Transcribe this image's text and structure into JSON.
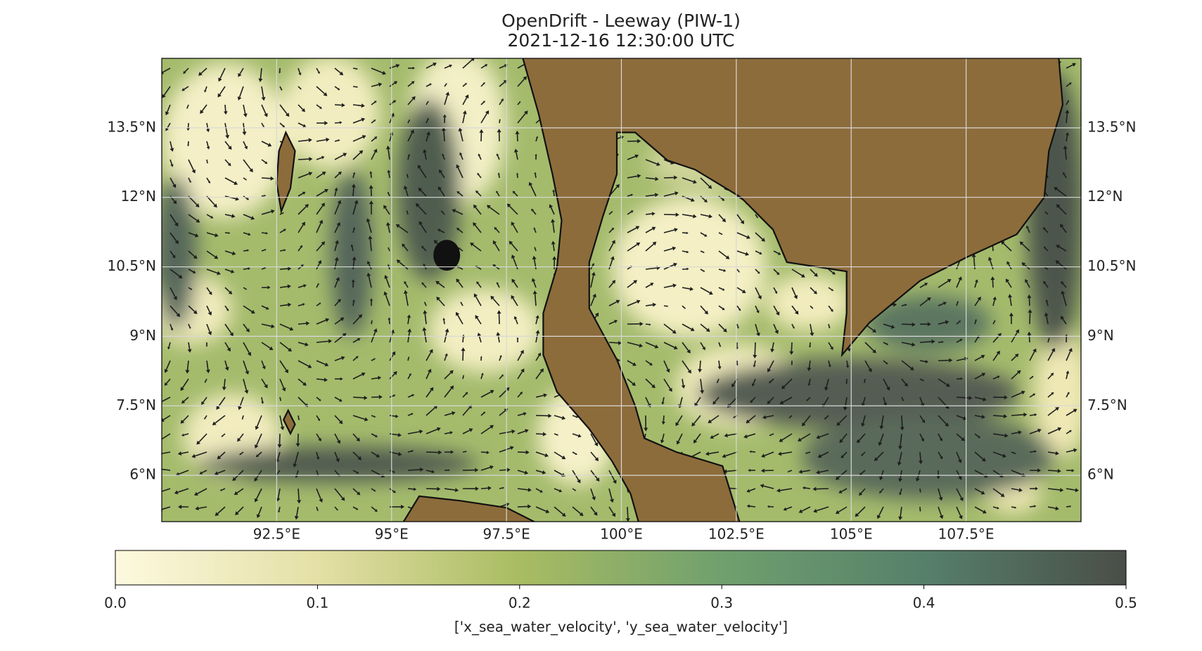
{
  "title": "OpenDrift - Leeway (PIW-1)",
  "subtitle": "2021-12-16 12:30:00 UTC",
  "map": {
    "xlim": [
      90,
      110
    ],
    "ylim": [
      5,
      15
    ],
    "xticks": [
      {
        "value": 92.5,
        "label": "92.5°E"
      },
      {
        "value": 95,
        "label": "95°E"
      },
      {
        "value": 97.5,
        "label": "97.5°E"
      },
      {
        "value": 100,
        "label": "100°E"
      },
      {
        "value": 102.5,
        "label": "102.5°E"
      },
      {
        "value": 105,
        "label": "105°E"
      },
      {
        "value": 107.5,
        "label": "107.5°E"
      }
    ],
    "yticks": [
      {
        "value": 6,
        "label": "6°N"
      },
      {
        "value": 7.5,
        "label": "7.5°N"
      },
      {
        "value": 9,
        "label": "9°N"
      },
      {
        "value": 10.5,
        "label": "10.5°N"
      },
      {
        "value": 12,
        "label": "12°N"
      },
      {
        "value": 13.5,
        "label": "13.5°N"
      }
    ]
  },
  "colorbar": {
    "label": "['x_sea_water_velocity', 'y_sea_water_velocity']",
    "lim": [
      0,
      0.5
    ],
    "ticks": [
      {
        "value": 0,
        "label": "0.0"
      },
      0.1,
      0.2,
      0.3,
      0.4,
      0.5
    ]
  }
}
